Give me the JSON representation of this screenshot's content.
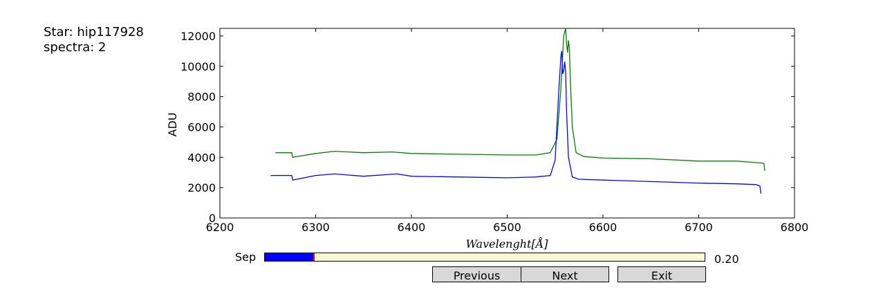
{
  "info": {
    "star": "Star: hip117928",
    "spectra": "spectra: 2"
  },
  "chart_data": {
    "type": "line",
    "xlabel": "Wavelenght[Å]",
    "ylabel": "ADU",
    "xlim": [
      6200,
      6800
    ],
    "ylim": [
      0,
      12500
    ],
    "xticks": [
      "6200",
      "6300",
      "6400",
      "6500",
      "6600",
      "6700",
      "6800"
    ],
    "yticks": [
      "0",
      "2000",
      "4000",
      "6000",
      "8000",
      "10000",
      "12000"
    ],
    "grid": false,
    "series": [
      {
        "color": "#008000",
        "x": [
          6258,
          6275,
          6276,
          6300,
          6320,
          6350,
          6380,
          6400,
          6450,
          6500,
          6530,
          6545,
          6552,
          6556,
          6559,
          6561,
          6562,
          6563,
          6564,
          6565,
          6566,
          6568,
          6572,
          6580,
          6600,
          6650,
          6700,
          6740,
          6760,
          6768,
          6769
        ],
        "y": [
          4300,
          4300,
          4000,
          4250,
          4400,
          4300,
          4350,
          4250,
          4200,
          4150,
          4150,
          4300,
          5200,
          8500,
          12000,
          12500,
          11500,
          10900,
          11700,
          11200,
          9000,
          6000,
          4300,
          4050,
          3950,
          3900,
          3750,
          3750,
          3650,
          3600,
          3100
        ]
      },
      {
        "color": "#0000ff",
        "x": [
          6253,
          6275,
          6276,
          6300,
          6320,
          6350,
          6385,
          6400,
          6450,
          6500,
          6530,
          6545,
          6550,
          6554,
          6556,
          6557,
          6558,
          6559,
          6560,
          6561,
          6562,
          6564,
          6568,
          6575,
          6600,
          6650,
          6700,
          6740,
          6760,
          6764,
          6765
        ],
        "y": [
          2800,
          2800,
          2500,
          2800,
          2900,
          2750,
          2900,
          2750,
          2700,
          2650,
          2700,
          2800,
          3800,
          8500,
          10600,
          11000,
          9500,
          9700,
          10300,
          9700,
          7000,
          4000,
          2700,
          2550,
          2500,
          2400,
          2300,
          2250,
          2200,
          2100,
          1600
        ]
      }
    ]
  },
  "slider": {
    "label": "Sep",
    "value": 0.2,
    "value_text": "0.20",
    "min": 0,
    "max": 1.8
  },
  "buttons": {
    "previous": "Previous",
    "next": "Next",
    "exit": "Exit"
  }
}
